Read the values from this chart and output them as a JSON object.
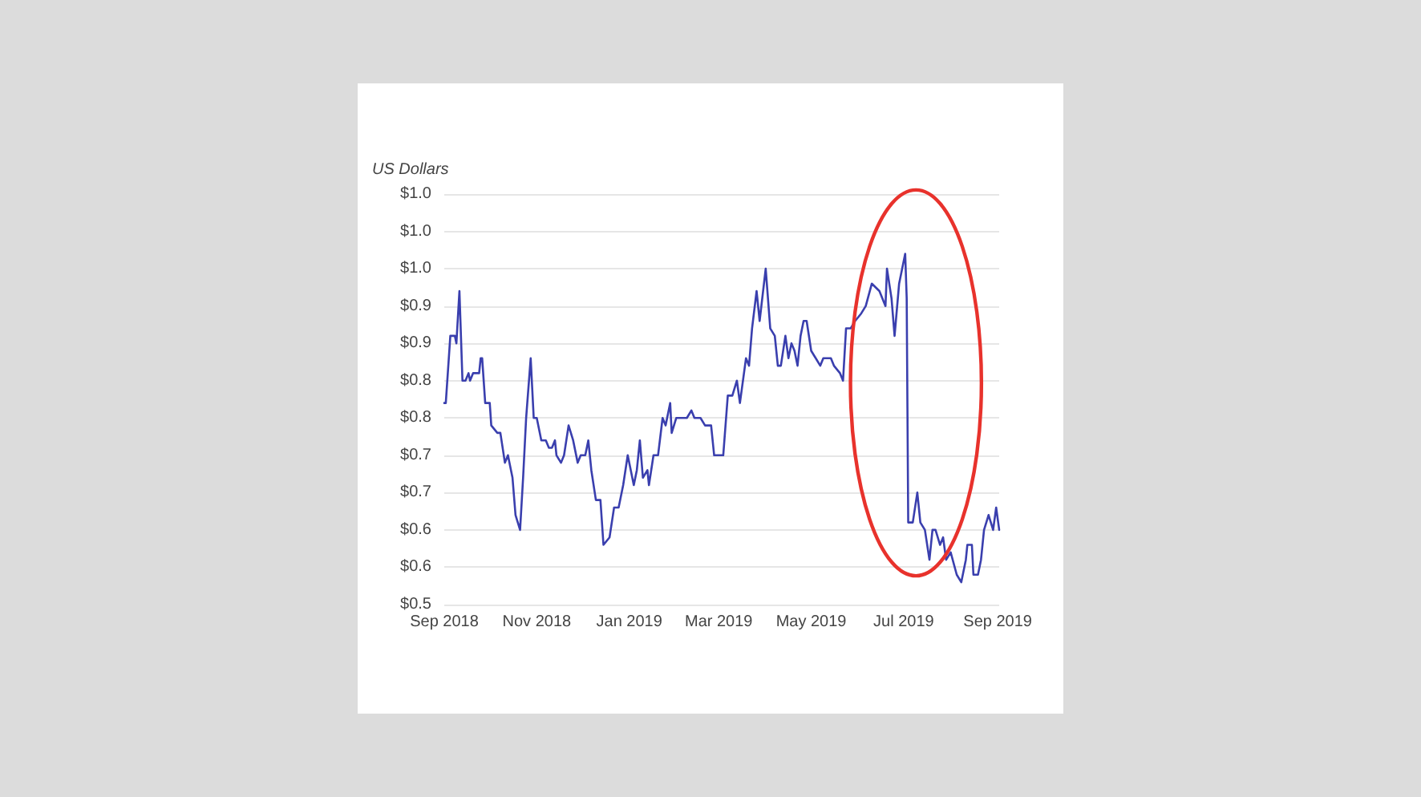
{
  "chart_data": {
    "type": "line",
    "ylabel": "US Dollars",
    "x": [
      "2018-09-01",
      "2018-09-02",
      "2018-09-05",
      "2018-09-08",
      "2018-09-09",
      "2018-09-11",
      "2018-09-13",
      "2018-09-15",
      "2018-09-17",
      "2018-09-18",
      "2018-09-20",
      "2018-09-22",
      "2018-09-24",
      "2018-09-25",
      "2018-09-26",
      "2018-09-28",
      "2018-10-01",
      "2018-10-02",
      "2018-10-06",
      "2018-10-08",
      "2018-10-11",
      "2018-10-13",
      "2018-10-15",
      "2018-10-16",
      "2018-10-18",
      "2018-10-21",
      "2018-10-23",
      "2018-10-25",
      "2018-10-28",
      "2018-10-30",
      "2018-11-01",
      "2018-11-04",
      "2018-11-07",
      "2018-11-09",
      "2018-11-11",
      "2018-11-13",
      "2018-11-14",
      "2018-11-17",
      "2018-11-19",
      "2018-11-22",
      "2018-11-25",
      "2018-11-28",
      "2018-11-30",
      "2018-12-03",
      "2018-12-05",
      "2018-12-07",
      "2018-12-10",
      "2018-12-13",
      "2018-12-15",
      "2018-12-19",
      "2018-12-22",
      "2018-12-25",
      "2018-12-28",
      "2018-12-31",
      "2019-01-04",
      "2019-01-06",
      "2019-01-08",
      "2019-01-10",
      "2019-01-13",
      "2019-01-14",
      "2019-01-17",
      "2019-01-20",
      "2019-01-23",
      "2019-01-25",
      "2019-01-28",
      "2019-01-29",
      "2019-02-01",
      "2019-02-05",
      "2019-02-08",
      "2019-02-11",
      "2019-02-13",
      "2019-02-17",
      "2019-02-20",
      "2019-02-24",
      "2019-02-26",
      "2019-03-01",
      "2019-03-04",
      "2019-03-07",
      "2019-03-10",
      "2019-03-13",
      "2019-03-15",
      "2019-03-19",
      "2019-03-21",
      "2019-03-23",
      "2019-03-26",
      "2019-03-28",
      "2019-04-01",
      "2019-04-04",
      "2019-04-07",
      "2019-04-09",
      "2019-04-11",
      "2019-04-14",
      "2019-04-16",
      "2019-04-18",
      "2019-04-20",
      "2019-04-22",
      "2019-04-24",
      "2019-04-26",
      "2019-04-28",
      "2019-05-01",
      "2019-05-04",
      "2019-05-07",
      "2019-05-09",
      "2019-05-12",
      "2019-05-14",
      "2019-05-16",
      "2019-05-20",
      "2019-05-22",
      "2019-05-24",
      "2019-05-27",
      "2019-05-30",
      "2019-06-03",
      "2019-06-06",
      "2019-06-10",
      "2019-06-15",
      "2019-06-19",
      "2019-06-20",
      "2019-06-23",
      "2019-06-25",
      "2019-06-28",
      "2019-07-02",
      "2019-07-03",
      "2019-07-04",
      "2019-07-07",
      "2019-07-10",
      "2019-07-12",
      "2019-07-15",
      "2019-07-18",
      "2019-07-20",
      "2019-07-22",
      "2019-07-25",
      "2019-07-27",
      "2019-07-29",
      "2019-08-01",
      "2019-08-05",
      "2019-08-08",
      "2019-08-11",
      "2019-08-12",
      "2019-08-15",
      "2019-08-16",
      "2019-08-19",
      "2019-08-21",
      "2019-08-23",
      "2019-08-26",
      "2019-08-29",
      "2019-08-31",
      "2019-09-02"
    ],
    "series": [
      {
        "color": "#3a3fae",
        "values": [
          0.77,
          0.77,
          0.86,
          0.86,
          0.85,
          0.92,
          0.8,
          0.8,
          0.81,
          0.8,
          0.81,
          0.81,
          0.81,
          0.83,
          0.83,
          0.77,
          0.77,
          0.74,
          0.73,
          0.73,
          0.69,
          0.7,
          0.68,
          0.67,
          0.62,
          0.6,
          0.67,
          0.75,
          0.83,
          0.75,
          0.75,
          0.72,
          0.72,
          0.71,
          0.71,
          0.72,
          0.7,
          0.69,
          0.7,
          0.74,
          0.72,
          0.69,
          0.7,
          0.7,
          0.72,
          0.68,
          0.64,
          0.64,
          0.58,
          0.59,
          0.63,
          0.63,
          0.66,
          0.7,
          0.66,
          0.68,
          0.72,
          0.67,
          0.68,
          0.66,
          0.7,
          0.7,
          0.75,
          0.74,
          0.77,
          0.73,
          0.75,
          0.75,
          0.75,
          0.76,
          0.75,
          0.75,
          0.74,
          0.74,
          0.7,
          0.7,
          0.7,
          0.78,
          0.78,
          0.8,
          0.77,
          0.83,
          0.82,
          0.87,
          0.92,
          0.88,
          0.95,
          0.87,
          0.86,
          0.82,
          0.82,
          0.86,
          0.83,
          0.85,
          0.84,
          0.82,
          0.86,
          0.88,
          0.88,
          0.84,
          0.83,
          0.82,
          0.83,
          0.83,
          0.83,
          0.82,
          0.81,
          0.8,
          0.87,
          0.87,
          0.88,
          0.89,
          0.9,
          0.93,
          0.92,
          0.9,
          0.95,
          0.91,
          0.86,
          0.93,
          0.97,
          0.91,
          0.61,
          0.61,
          0.65,
          0.61,
          0.6,
          0.56,
          0.6,
          0.6,
          0.58,
          0.59,
          0.56,
          0.57,
          0.54,
          0.53,
          0.56,
          0.58,
          0.58,
          0.54,
          0.54,
          0.56,
          0.6,
          0.62,
          0.6,
          0.63,
          0.6
        ]
      }
    ],
    "xlim": [
      "2018-09-01",
      "2019-09-02"
    ],
    "xticks": [
      {
        "value": "2018-09-01",
        "label": "Sep 2018"
      },
      {
        "value": "2018-11-01",
        "label": "Nov 2018"
      },
      {
        "value": "2019-01-01",
        "label": "Jan 2019"
      },
      {
        "value": "2019-03-01",
        "label": "Mar 2019"
      },
      {
        "value": "2019-05-01",
        "label": "May 2019"
      },
      {
        "value": "2019-07-01",
        "label": "Jul 2019"
      },
      {
        "value": "2019-09-01",
        "label": "Sep 2019"
      }
    ],
    "ylim": [
      0.5,
      1.05
    ],
    "yticks": [
      {
        "value": 0.5,
        "label": "$0.5"
      },
      {
        "value": 0.55,
        "label": "$0.6"
      },
      {
        "value": 0.6,
        "label": "$0.6"
      },
      {
        "value": 0.65,
        "label": "$0.7"
      },
      {
        "value": 0.7,
        "label": "$0.7"
      },
      {
        "value": 0.75,
        "label": "$0.8"
      },
      {
        "value": 0.8,
        "label": "$0.8"
      },
      {
        "value": 0.85,
        "label": "$0.9"
      },
      {
        "value": 0.9,
        "label": "$0.9"
      },
      {
        "value": 0.95,
        "label": "$1.0"
      },
      {
        "value": 1.0,
        "label": "$1.0"
      },
      {
        "value": 1.05,
        "label": "$1.0"
      }
    ],
    "grid": "y",
    "line_style": "solid"
  }
}
